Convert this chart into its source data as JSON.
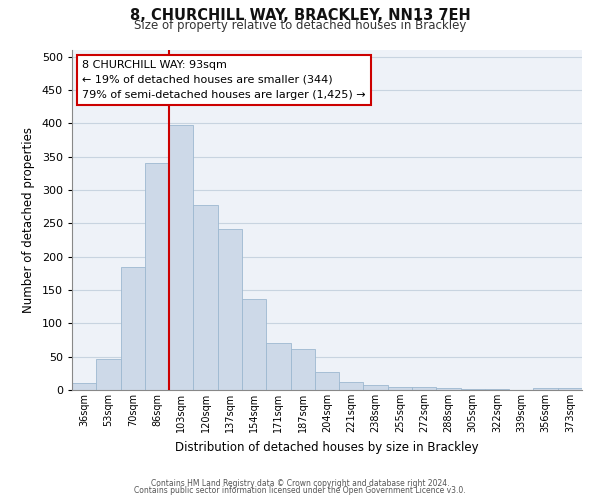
{
  "title": "8, CHURCHILL WAY, BRACKLEY, NN13 7EH",
  "subtitle": "Size of property relative to detached houses in Brackley",
  "xlabel": "Distribution of detached houses by size in Brackley",
  "ylabel": "Number of detached properties",
  "bar_labels": [
    "36sqm",
    "53sqm",
    "70sqm",
    "86sqm",
    "103sqm",
    "120sqm",
    "137sqm",
    "154sqm",
    "171sqm",
    "187sqm",
    "204sqm",
    "221sqm",
    "238sqm",
    "255sqm",
    "272sqm",
    "288sqm",
    "305sqm",
    "322sqm",
    "339sqm",
    "356sqm",
    "373sqm"
  ],
  "bar_values": [
    10,
    47,
    185,
    340,
    398,
    277,
    242,
    137,
    70,
    62,
    27,
    12,
    8,
    5,
    4,
    3,
    2,
    1,
    0,
    3,
    3
  ],
  "bar_color": "#cdd9e8",
  "bar_edge_color": "#9db8d0",
  "vline_x": 3.5,
  "vline_color": "#cc0000",
  "annotation_text": "8 CHURCHILL WAY: 93sqm\n← 19% of detached houses are smaller (344)\n79% of semi-detached houses are larger (1,425) →",
  "annotation_box_color": "#ffffff",
  "annotation_box_edge": "#cc0000",
  "ylim": [
    0,
    510
  ],
  "yticks": [
    0,
    50,
    100,
    150,
    200,
    250,
    300,
    350,
    400,
    450,
    500
  ],
  "grid_color": "#c8d4e0",
  "bg_color": "#eef2f8",
  "footer_line1": "Contains HM Land Registry data © Crown copyright and database right 2024.",
  "footer_line2": "Contains public sector information licensed under the Open Government Licence v3.0."
}
